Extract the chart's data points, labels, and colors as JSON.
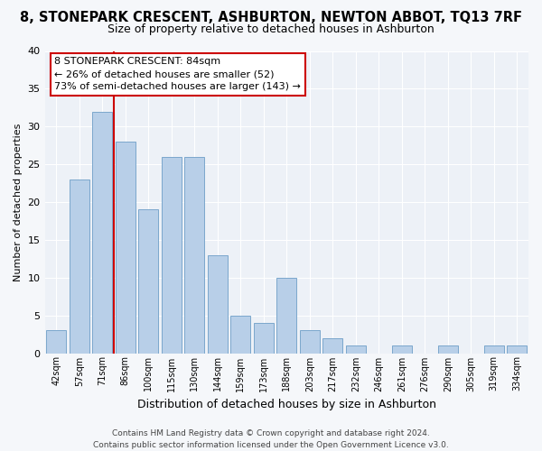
{
  "title": "8, STONEPARK CRESCENT, ASHBURTON, NEWTON ABBOT, TQ13 7RF",
  "subtitle": "Size of property relative to detached houses in Ashburton",
  "xlabel": "Distribution of detached houses by size in Ashburton",
  "ylabel": "Number of detached properties",
  "bar_labels": [
    "42sqm",
    "57sqm",
    "71sqm",
    "86sqm",
    "100sqm",
    "115sqm",
    "130sqm",
    "144sqm",
    "159sqm",
    "173sqm",
    "188sqm",
    "203sqm",
    "217sqm",
    "232sqm",
    "246sqm",
    "261sqm",
    "276sqm",
    "290sqm",
    "305sqm",
    "319sqm",
    "334sqm"
  ],
  "bar_values": [
    3,
    23,
    32,
    28,
    19,
    26,
    26,
    13,
    5,
    4,
    10,
    3,
    2,
    1,
    0,
    1,
    0,
    1,
    0,
    1,
    1
  ],
  "bar_color": "#b8cfe8",
  "bar_edge_color": "#7ba7cc",
  "reference_line_color": "#cc0000",
  "ylim": [
    0,
    40
  ],
  "yticks": [
    0,
    5,
    10,
    15,
    20,
    25,
    30,
    35,
    40
  ],
  "annotation_lines": [
    "8 STONEPARK CRESCENT: 84sqm",
    "← 26% of detached houses are smaller (52)",
    "73% of semi-detached houses are larger (143) →"
  ],
  "annotation_box_color": "#ffffff",
  "annotation_box_edge": "#cc0000",
  "footer_line1": "Contains HM Land Registry data © Crown copyright and database right 2024.",
  "footer_line2": "Contains public sector information licensed under the Open Government Licence v3.0.",
  "fig_bg_color": "#f5f7fa",
  "ax_bg_color": "#edf1f7",
  "grid_color": "#ffffff"
}
